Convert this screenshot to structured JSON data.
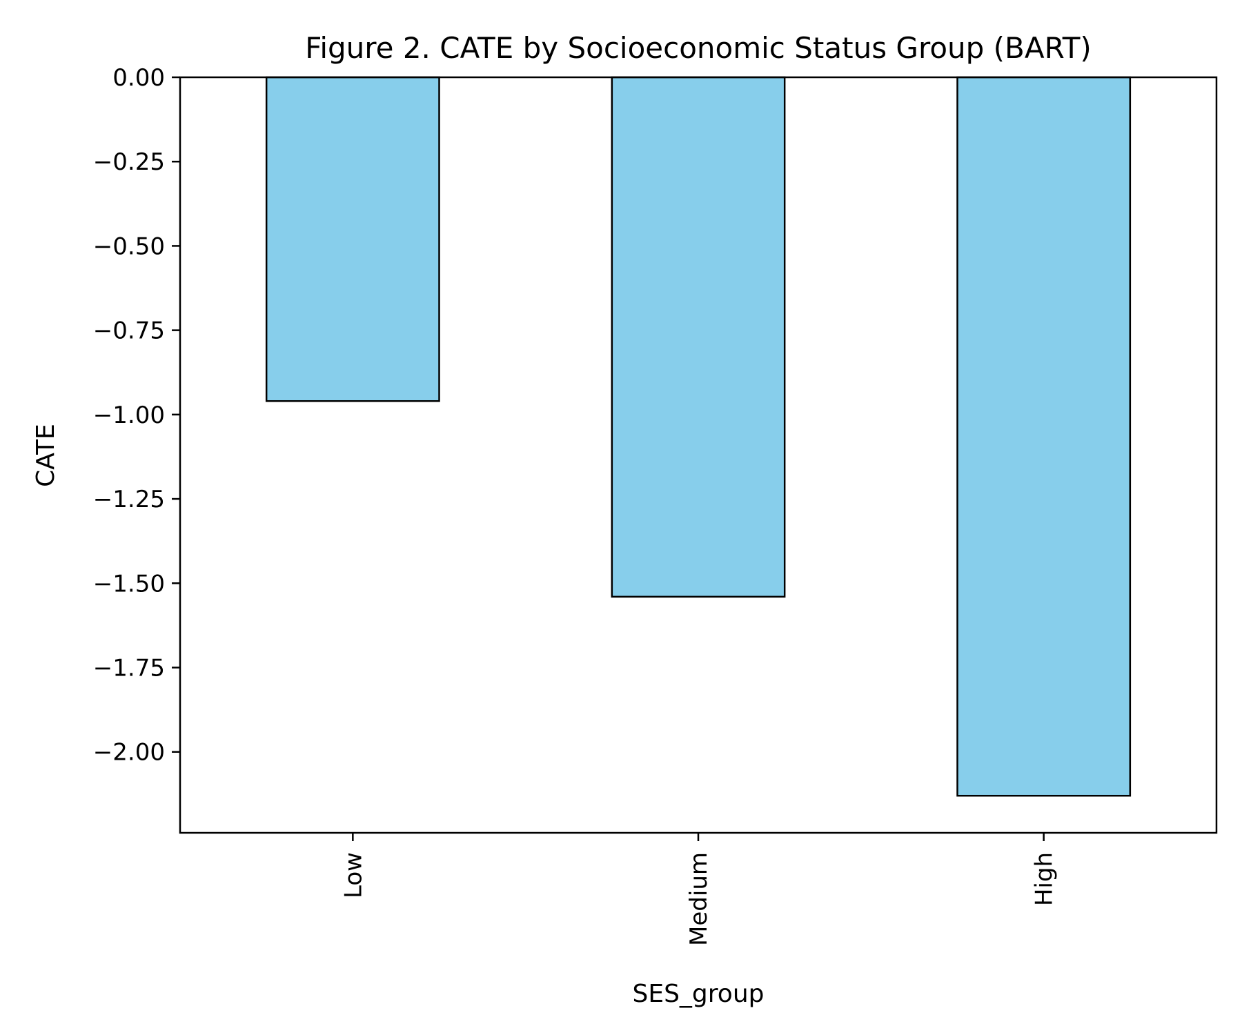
{
  "chart_data": {
    "type": "bar",
    "title": "Figure 2. CATE by Socioeconomic Status Group (BART)",
    "xlabel": "SES_group",
    "ylabel": "CATE",
    "categories": [
      "Low",
      "Medium",
      "High"
    ],
    "values": [
      -0.96,
      -1.54,
      -2.13
    ],
    "ylim": [
      -2.24,
      0.0
    ],
    "yticks": [
      0.0,
      -0.25,
      -0.5,
      -0.75,
      -1.0,
      -1.25,
      -1.5,
      -1.75,
      -2.0
    ],
    "ytick_labels": [
      "0.00",
      "−0.25",
      "−0.50",
      "−0.75",
      "−1.00",
      "−1.25",
      "−1.50",
      "−1.75",
      "−2.00"
    ],
    "grid": false,
    "legend": false,
    "x_tick_rotation": "vertical",
    "colors": {
      "bar_fill": "#87CEEB",
      "bar_edge": "#000000",
      "axis": "#000000"
    }
  }
}
